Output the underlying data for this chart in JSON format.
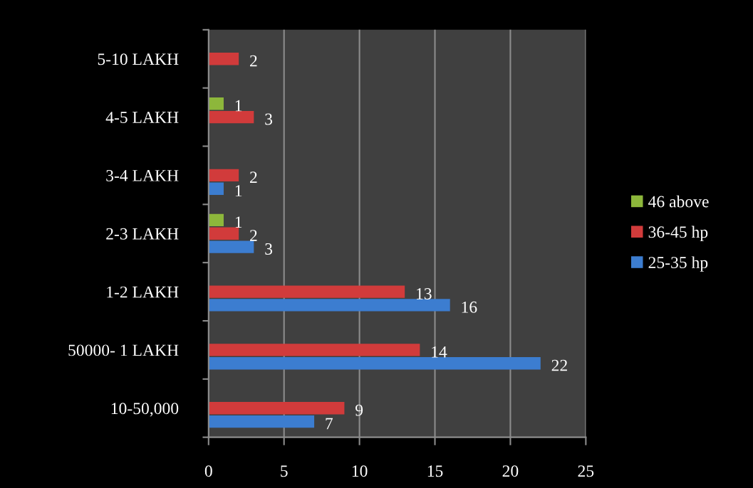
{
  "chart_data": {
    "type": "bar",
    "orientation": "horizontal",
    "categories": [
      "5-10 LAKH",
      "4-5 LAKH",
      "3-4 LAKH",
      "2-3 LAKH",
      "1-2 LAKH",
      "50000- 1 LAKH",
      "10-50,000"
    ],
    "series": [
      {
        "name": "25-35 hp",
        "color": "#3c7dd0",
        "values": [
          null,
          null,
          1,
          3,
          16,
          22,
          7
        ]
      },
      {
        "name": "36-45 hp",
        "color": "#d13b3b",
        "values": [
          2,
          3,
          2,
          2,
          13,
          14,
          9
        ]
      },
      {
        "name": "46 above",
        "color": "#8db73b",
        "values": [
          null,
          1,
          null,
          1,
          null,
          null,
          null
        ]
      }
    ],
    "xlim": [
      0,
      25
    ],
    "xticks": [
      0,
      5,
      10,
      15,
      20,
      25
    ],
    "grid": "x",
    "legend": "right",
    "data_labels": true
  }
}
